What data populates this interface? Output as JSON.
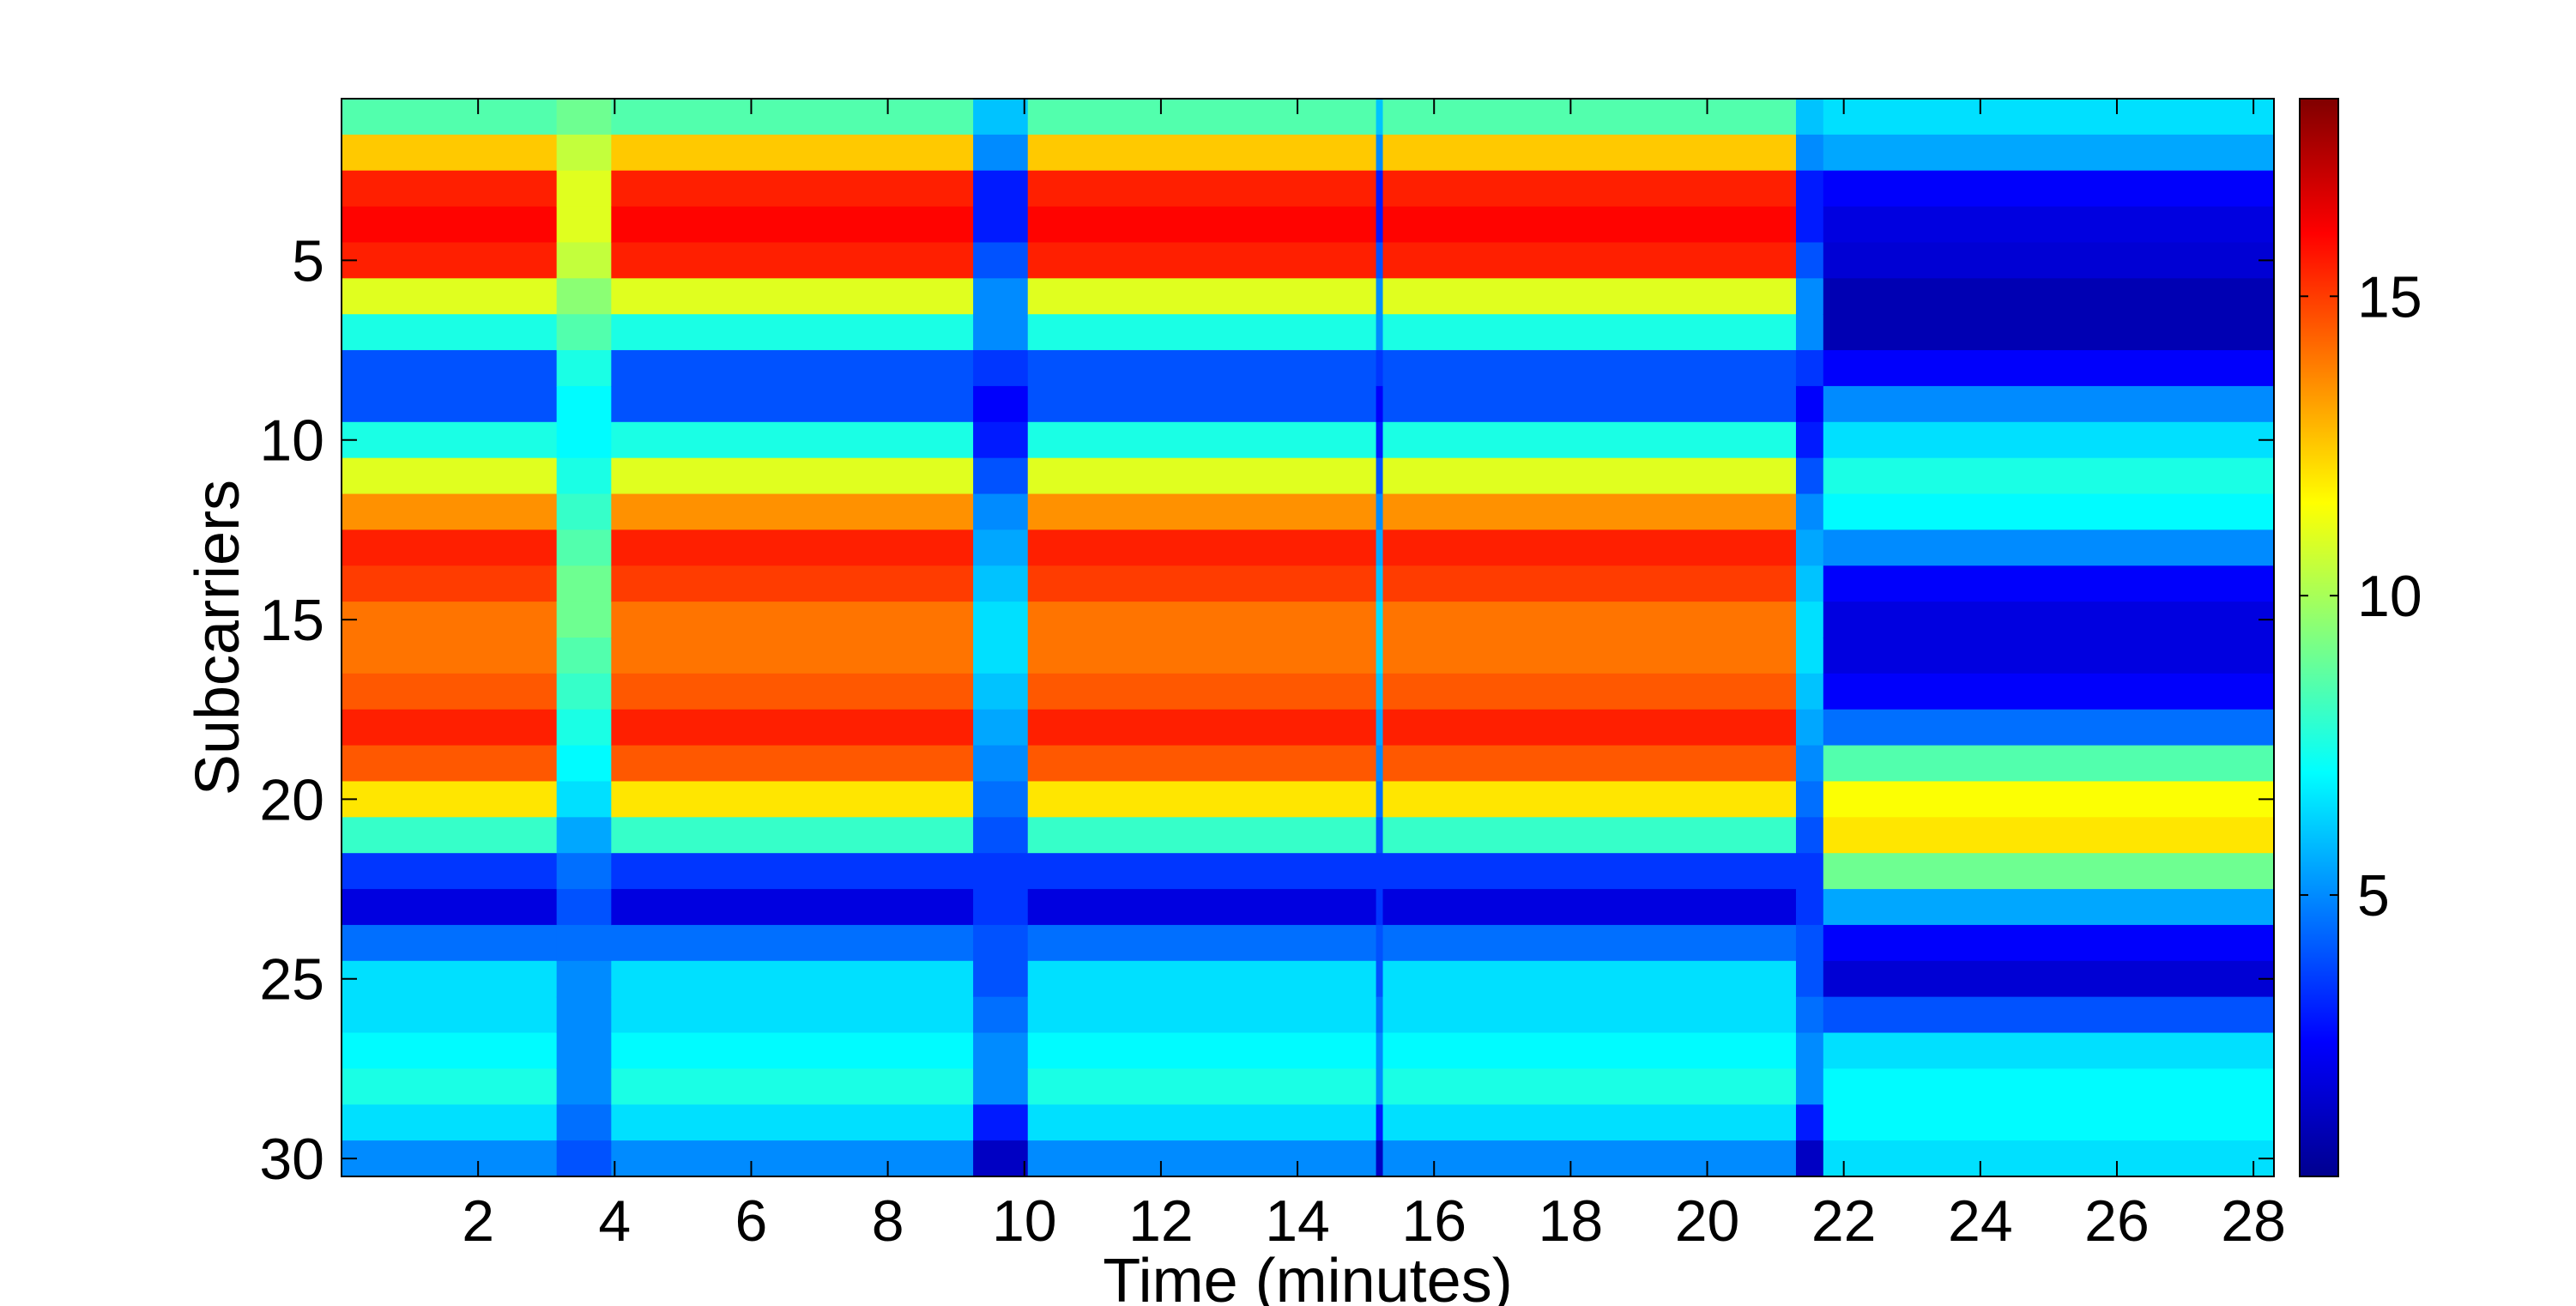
{
  "chart_data": {
    "type": "heatmap",
    "title": "",
    "xlabel": "Time (minutes)",
    "ylabel": "Subcarriers",
    "xlim": [
      0,
      28.3
    ],
    "ylim": [
      0.5,
      30.5
    ],
    "y_reversed": true,
    "x_ticks": [
      2,
      4,
      6,
      8,
      10,
      12,
      14,
      16,
      18,
      20,
      22,
      24,
      26,
      28
    ],
    "x_tick_labels": [
      "2",
      "4",
      "6",
      "8",
      "10",
      "12",
      "14",
      "16",
      "18",
      "20",
      "22",
      "24",
      "26",
      "28"
    ],
    "y_ticks": [
      5,
      10,
      15,
      20,
      25,
      30
    ],
    "y_tick_labels": [
      "5",
      "10",
      "15",
      "20",
      "25",
      "30"
    ],
    "colormap": "jet",
    "color_range": [
      0.3,
      18.3
    ],
    "colorbar_ticks": [
      5,
      10,
      15
    ],
    "colorbar_tick_labels": [
      "5",
      "10",
      "15"
    ],
    "grid": false,
    "subcarriers": [
      1,
      2,
      3,
      4,
      5,
      6,
      7,
      8,
      9,
      10,
      11,
      12,
      13,
      14,
      15,
      16,
      17,
      18,
      19,
      20,
      21,
      22,
      23,
      24,
      25,
      26,
      27,
      28,
      29,
      30
    ],
    "profiles": {
      "A": [
        8.5,
        12.5,
        15.5,
        16.0,
        15.5,
        11.0,
        7.5,
        4.0,
        4.0,
        7.5,
        11.0,
        13.5,
        15.5,
        15.0,
        14.0,
        14.0,
        14.5,
        15.5,
        14.5,
        12.0,
        8.0,
        3.5,
        2.0,
        4.5,
        6.5,
        6.5,
        7.0,
        7.5,
        6.5,
        5.0
      ],
      "B": [
        9.0,
        10.5,
        11.0,
        11.0,
        10.5,
        9.5,
        8.5,
        7.5,
        7.0,
        7.0,
        7.5,
        8.0,
        8.5,
        9.0,
        9.0,
        8.5,
        8.0,
        7.5,
        7.0,
        6.5,
        5.5,
        4.5,
        4.0,
        4.5,
        5.0,
        5.0,
        5.0,
        5.0,
        4.5,
        4.0
      ],
      "C": [
        6.5,
        5.5,
        2.5,
        2.0,
        1.8,
        1.2,
        1.2,
        2.5,
        5.0,
        6.5,
        7.5,
        7.0,
        5.0,
        2.5,
        2.0,
        2.0,
        2.5,
        4.5,
        8.5,
        11.5,
        12.0,
        9.0,
        5.5,
        2.5,
        1.8,
        4.0,
        6.5,
        7.0,
        7.0,
        6.5
      ],
      "D": [
        6.0,
        5.0,
        3.0,
        3.0,
        4.0,
        5.0,
        5.0,
        3.5,
        2.5,
        3.0,
        4.0,
        5.0,
        5.5,
        6.0,
        6.5,
        6.5,
        6.0,
        5.5,
        5.0,
        4.5,
        4.0,
        3.5,
        3.5,
        4.0,
        4.0,
        4.5,
        5.0,
        5.0,
        3.0,
        1.5
      ]
    },
    "segments": [
      {
        "x_start": 0.0,
        "x_end": 3.15,
        "profile": "A"
      },
      {
        "x_start": 3.15,
        "x_end": 3.95,
        "profile": "B"
      },
      {
        "x_start": 3.95,
        "x_end": 9.25,
        "profile": "A"
      },
      {
        "x_start": 9.25,
        "x_end": 10.05,
        "profile": "D"
      },
      {
        "x_start": 10.05,
        "x_end": 15.15,
        "profile": "A"
      },
      {
        "x_start": 15.15,
        "x_end": 15.25,
        "profile": "D"
      },
      {
        "x_start": 15.25,
        "x_end": 21.3,
        "profile": "A"
      },
      {
        "x_start": 21.3,
        "x_end": 21.7,
        "profile": "D"
      },
      {
        "x_start": 21.7,
        "x_end": 28.3,
        "profile": "C"
      }
    ]
  }
}
